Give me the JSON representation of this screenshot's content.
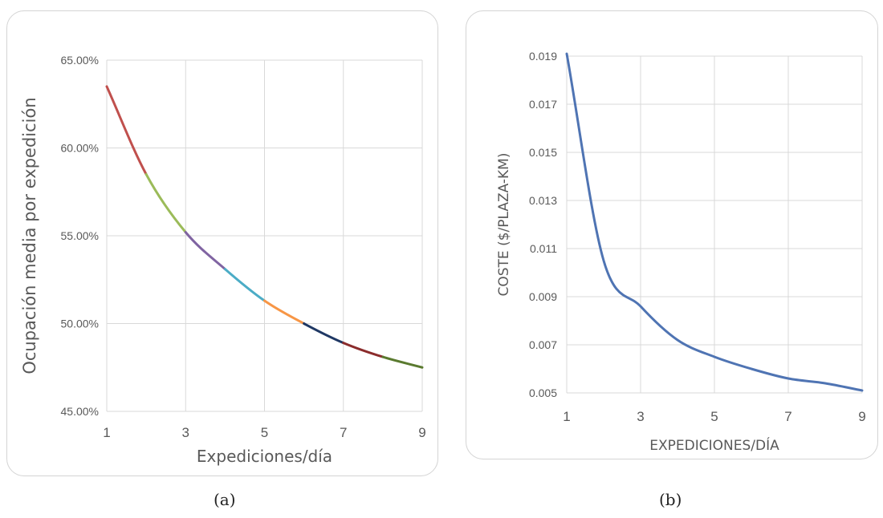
{
  "chart_data": [
    {
      "type": "line",
      "xlabel": "Expediciones/día",
      "ylabel": "Ocupación media por expedición",
      "xlim": [
        1,
        9
      ],
      "ylim": [
        45,
        65
      ],
      "x_ticks": [
        "1",
        "3",
        "5",
        "7",
        "9"
      ],
      "y_ticks": [
        "45.00%",
        "50.00%",
        "55.00%",
        "60.00%",
        "65.00%"
      ],
      "grid": true,
      "segment_colors": [
        "#c0504d",
        "#9bbb59",
        "#8064a2",
        "#4bacc6",
        "#f79646",
        "#1f3864",
        "#8b2c2c",
        "#5a7a2f"
      ],
      "x": [
        1,
        2,
        3,
        4,
        5,
        6,
        7,
        8,
        9
      ],
      "y": [
        63.5,
        58.5,
        55.2,
        53.1,
        51.3,
        50.0,
        48.9,
        48.1,
        47.5
      ],
      "caption": "(a)"
    },
    {
      "type": "line",
      "xlabel": "EXPEDICIONES/DÍA",
      "ylabel": "COSTE ($/PLAZA-KM)",
      "xlim": [
        1,
        9
      ],
      "ylim": [
        0.005,
        0.019
      ],
      "x_ticks": [
        "1",
        "3",
        "5",
        "7",
        "9"
      ],
      "y_ticks": [
        "0.005",
        "0.007",
        "0.009",
        "0.011",
        "0.013",
        "0.015",
        "0.017",
        "0.019"
      ],
      "grid": true,
      "line_color": "#4f74b3",
      "x": [
        1,
        2,
        3,
        4,
        5,
        6,
        7,
        8,
        9
      ],
      "y": [
        0.0191,
        0.0105,
        0.0086,
        0.0072,
        0.0065,
        0.006,
        0.0056,
        0.0054,
        0.0051
      ],
      "caption": "(b)"
    }
  ]
}
